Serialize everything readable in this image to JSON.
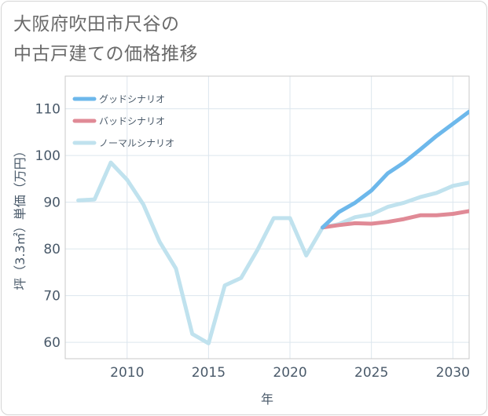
{
  "page": {
    "title": "大阪府吹田市尺谷の\n中古戸建ての価格推移"
  },
  "chart_data": {
    "type": "line",
    "title": "大阪府吹田市尺谷の中古戸建ての価格推移",
    "xlabel": "年",
    "ylabel": "坪（3.3㎡）単価（万円）",
    "xlim": [
      2006.2,
      2031
    ],
    "ylim": [
      56.5,
      117
    ],
    "xticks": [
      2010,
      2015,
      2020,
      2025,
      2030
    ],
    "yticks": [
      60,
      70,
      80,
      90,
      100,
      110
    ],
    "grid": true,
    "legend_position": "top-left",
    "series": [
      {
        "name": "ノーマルシナリオ",
        "color": "#c0e2ee",
        "x": [
          2007,
          2008,
          2009,
          2010,
          2011,
          2012,
          2013,
          2014,
          2015,
          2016,
          2017,
          2018,
          2019,
          2020,
          2021,
          2022,
          2023,
          2024,
          2025,
          2026,
          2027,
          2028,
          2029,
          2030,
          2031
        ],
        "values": [
          90.4,
          90.6,
          98.5,
          94.8,
          89.5,
          81.5,
          75.8,
          61.8,
          59.8,
          72.2,
          73.8,
          79.8,
          86.6,
          86.6,
          78.6,
          84.6,
          85.3,
          86.8,
          87.4,
          89.0,
          89.9,
          91.1,
          92.0,
          93.5,
          94.2
        ]
      },
      {
        "name": "バッドシナリオ",
        "color": "#e08a96",
        "x": [
          2022,
          2023,
          2024,
          2025,
          2026,
          2027,
          2028,
          2029,
          2030,
          2031
        ],
        "values": [
          84.6,
          85.1,
          85.5,
          85.4,
          85.8,
          86.4,
          87.2,
          87.2,
          87.5,
          88.1
        ]
      },
      {
        "name": "グッドシナリオ",
        "color": "#6db8eb",
        "x": [
          2022,
          2023,
          2024,
          2025,
          2026,
          2027,
          2028,
          2029,
          2030,
          2031
        ],
        "values": [
          84.6,
          87.9,
          89.9,
          92.5,
          96.2,
          98.5,
          101.3,
          104.2,
          106.8,
          109.4
        ]
      }
    ],
    "legend": [
      {
        "name": "グッドシナリオ",
        "color": "#6db8eb"
      },
      {
        "name": "バッドシナリオ",
        "color": "#e08a96"
      },
      {
        "name": "ノーマルシナリオ",
        "color": "#c0e2ee"
      }
    ]
  }
}
